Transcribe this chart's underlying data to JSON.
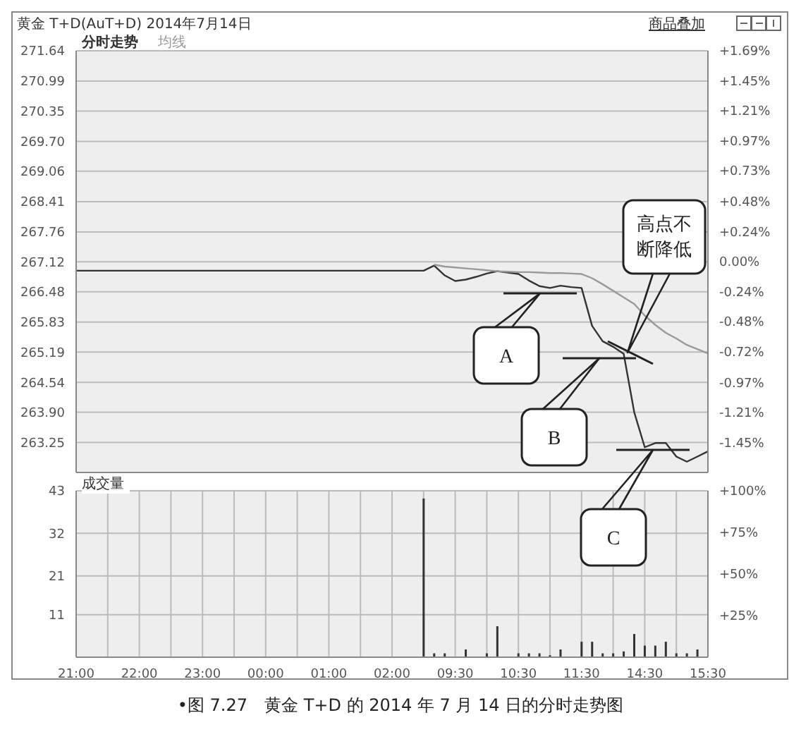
{
  "chart_data": [
    {
      "type": "line",
      "title": "黄金 T+D(AuT+D) 2014年7月14日",
      "categories": [
        null,
        null,
        null,
        null,
        null,
        null,
        null,
        null,
        null,
        null,
        null,
        null,
        null,
        null,
        null,
        null,
        null,
        null,
        null,
        null,
        null,
        null,
        null,
        null,
        null,
        null,
        null,
        null,
        null,
        null,
        null,
        null,
        null,
        null,
        null,
        null,
        null,
        null,
        null,
        null,
        null,
        null,
        null,
        null,
        null,
        null,
        null,
        null,
        null,
        null,
        null,
        null,
        null,
        null,
        null,
        null,
        null,
        null,
        null,
        null,
        null
      ],
      "ylim": [
        262.61,
        271.64
      ],
      "yticks": [
        271.64,
        270.99,
        {
          "value": 270.35,
          "label": "270.35"
        },
        {
          "value": 269.7,
          "label": "269.70"
        },
        269.06,
        268.41,
        267.76,
        267.12,
        266.48,
        265.83,
        265.19,
        264.54,
        {
          "value": 263.9,
          "label": "263.90"
        },
        263.25
      ],
      "y2lim": [
        -1.69,
        1.69
      ],
      "y2ticks": [
        {
          "value": 1.69,
          "label": "+1.69%"
        },
        {
          "value": 1.45,
          "label": "+1.45%"
        },
        {
          "value": 1.21,
          "label": "+1.21%"
        },
        {
          "value": 0.97,
          "label": "+0.97%"
        },
        {
          "value": 0.73,
          "label": "+0.73%"
        },
        {
          "value": 0.48,
          "label": "+0.48%"
        },
        {
          "value": 0.24,
          "label": "+0.24%"
        },
        {
          "value": 0,
          "label": "0.00%"
        },
        {
          "value": -0.24,
          "label": "-0.24%"
        },
        {
          "value": -0.48,
          "label": "-0.48%"
        },
        {
          "value": -0.72,
          "label": "-0.72%"
        },
        {
          "value": -0.97,
          "label": "-0.97%"
        },
        {
          "value": -1.21,
          "label": "-1.21%"
        },
        {
          "value": -1.45,
          "label": "-1.45%"
        }
      ],
      "tick_labels": "y",
      "grid": true,
      "legend": "top left",
      "marker": "none",
      "series": [
        {
          "name": "分时走势",
          "color": "#333333",
          "values": [
            266.93,
            266.93,
            266.93,
            266.93,
            266.93,
            266.93,
            266.93,
            266.93,
            266.93,
            266.93,
            266.93,
            266.93,
            266.93,
            266.93,
            266.93,
            266.93,
            266.93,
            266.93,
            266.93,
            266.93,
            266.93,
            266.93,
            266.93,
            266.93,
            266.93,
            266.93,
            266.93,
            266.93,
            266.93,
            266.93,
            266.93,
            266.93,
            266.93,
            266.93,
            267.04,
            266.83,
            266.71,
            266.74,
            266.8,
            266.87,
            266.92,
            266.89,
            266.86,
            266.72,
            266.6,
            266.56,
            266.61,
            266.58,
            266.56,
            265.75,
            265.42,
            265.3,
            265.15,
            263.9,
            263.15,
            263.24,
            263.24,
            262.95,
            262.84,
            262.95,
            263.06
          ]
        },
        {
          "name": "均线",
          "color": "#9a9a9a",
          "values": [
            null,
            null,
            null,
            null,
            null,
            null,
            null,
            null,
            null,
            null,
            null,
            null,
            null,
            null,
            null,
            null,
            null,
            null,
            null,
            null,
            null,
            null,
            null,
            null,
            null,
            null,
            null,
            null,
            null,
            null,
            null,
            null,
            null,
            null,
            267.06,
            267.02,
            267.0,
            266.98,
            266.96,
            266.94,
            266.92,
            266.91,
            266.9,
            266.9,
            266.89,
            266.88,
            266.88,
            266.87,
            266.86,
            266.77,
            266.64,
            266.5,
            266.36,
            266.22,
            265.97,
            265.77,
            265.6,
            265.48,
            265.34,
            265.25,
            265.16
          ]
        }
      ],
      "annotations": [
        "商品叠加",
        "A",
        "B",
        "C",
        "高点不断降低"
      ]
    },
    {
      "type": "bar",
      "title": "成交量",
      "color": "#333333",
      "categories": [
        "21:00",
        null,
        null,
        null,
        null,
        null,
        "22:00",
        null,
        null,
        null,
        null,
        null,
        "23:00",
        null,
        null,
        null,
        null,
        null,
        "00:00",
        null,
        null,
        null,
        null,
        null,
        "01:00",
        null,
        null,
        null,
        null,
        null,
        "02:00",
        null,
        null,
        null,
        null,
        null,
        "09:30",
        null,
        null,
        null,
        null,
        null,
        "10:30",
        null,
        null,
        null,
        null,
        null,
        "11:30",
        null,
        null,
        null,
        null,
        null,
        "14:30",
        null,
        null,
        null,
        null,
        null,
        "15:30"
      ],
      "ylim": [
        0,
        43
      ],
      "yticks": [
        11,
        21,
        32,
        43
      ],
      "y2lim": [
        0,
        100
      ],
      "y2ticks": [
        {
          "value": 25,
          "label": "+25%"
        },
        {
          "value": 50,
          "label": "+50%"
        },
        {
          "value": 75,
          "label": "+75%"
        },
        {
          "value": 100,
          "label": "+100%"
        }
      ],
      "grid": true,
      "values": [
        null,
        null,
        null,
        null,
        null,
        null,
        null,
        null,
        null,
        null,
        null,
        null,
        null,
        null,
        null,
        null,
        null,
        null,
        null,
        null,
        null,
        null,
        null,
        null,
        null,
        null,
        null,
        null,
        null,
        null,
        null,
        null,
        null,
        41,
        1,
        1,
        null,
        2,
        null,
        1,
        8,
        null,
        1,
        1,
        1,
        0.5,
        2,
        null,
        4,
        4,
        1,
        1,
        1.5,
        6,
        3,
        3,
        4,
        1,
        1,
        2,
        null
      ],
      "annotations": [
        "•图 7.27　黄金 T+D 的 2014 年 7 月 14 日的分时走势图"
      ]
    }
  ]
}
